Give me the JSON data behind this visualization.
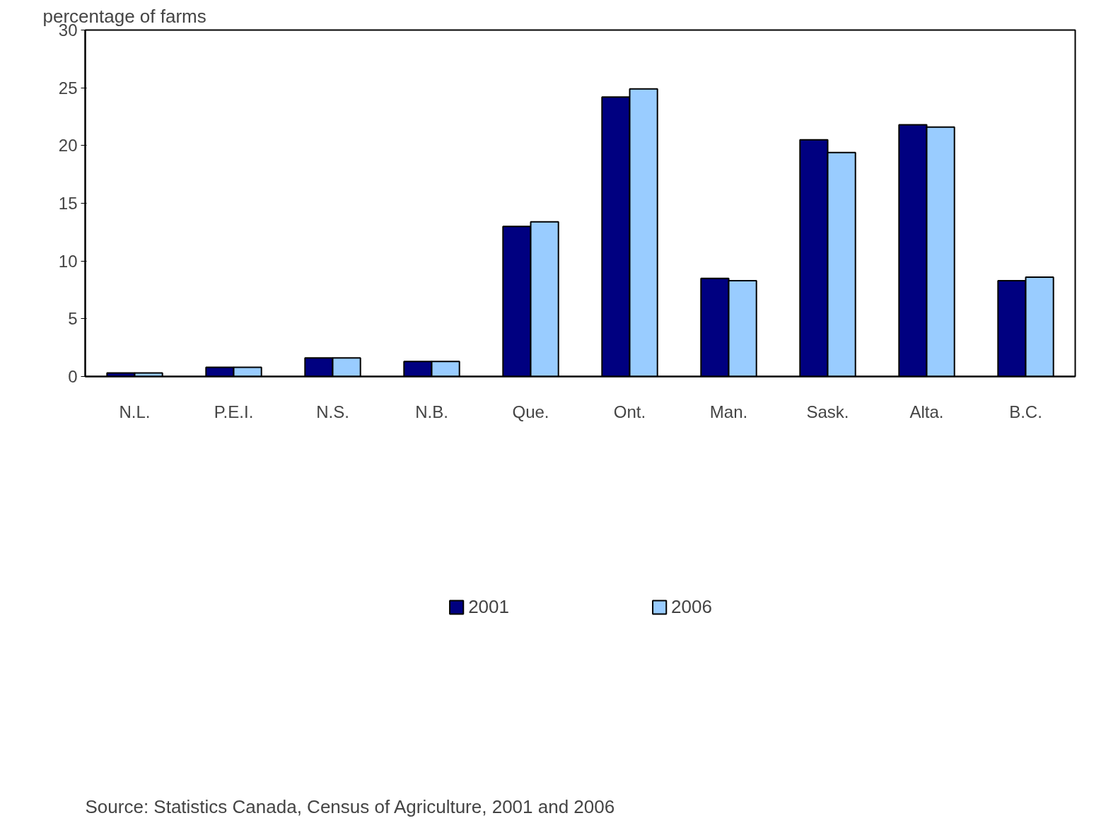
{
  "chart_data": {
    "type": "bar",
    "ylabel": "percentage of farms",
    "categories": [
      "N.L.",
      "P.E.I.",
      "N.S.",
      "N.B.",
      "Que.",
      "Ont.",
      "Man.",
      "Sask.",
      "Alta.",
      "B.C."
    ],
    "series": [
      {
        "name": "2001",
        "color": "#000080",
        "values": [
          0.3,
          0.8,
          1.6,
          1.3,
          13.0,
          24.2,
          8.5,
          20.5,
          21.8,
          8.3
        ]
      },
      {
        "name": "2006",
        "color": "#99ccff",
        "values": [
          0.3,
          0.8,
          1.6,
          1.3,
          13.4,
          24.9,
          8.3,
          19.4,
          21.6,
          8.6
        ]
      }
    ],
    "ylim": [
      0,
      30
    ],
    "yticks": [
      0,
      5,
      10,
      15,
      20,
      25,
      30
    ],
    "grid": false,
    "legend": "bottom",
    "annotations": [
      "Source: Statistics Canada, Census of Agriculture, 2001 and 2006"
    ]
  }
}
